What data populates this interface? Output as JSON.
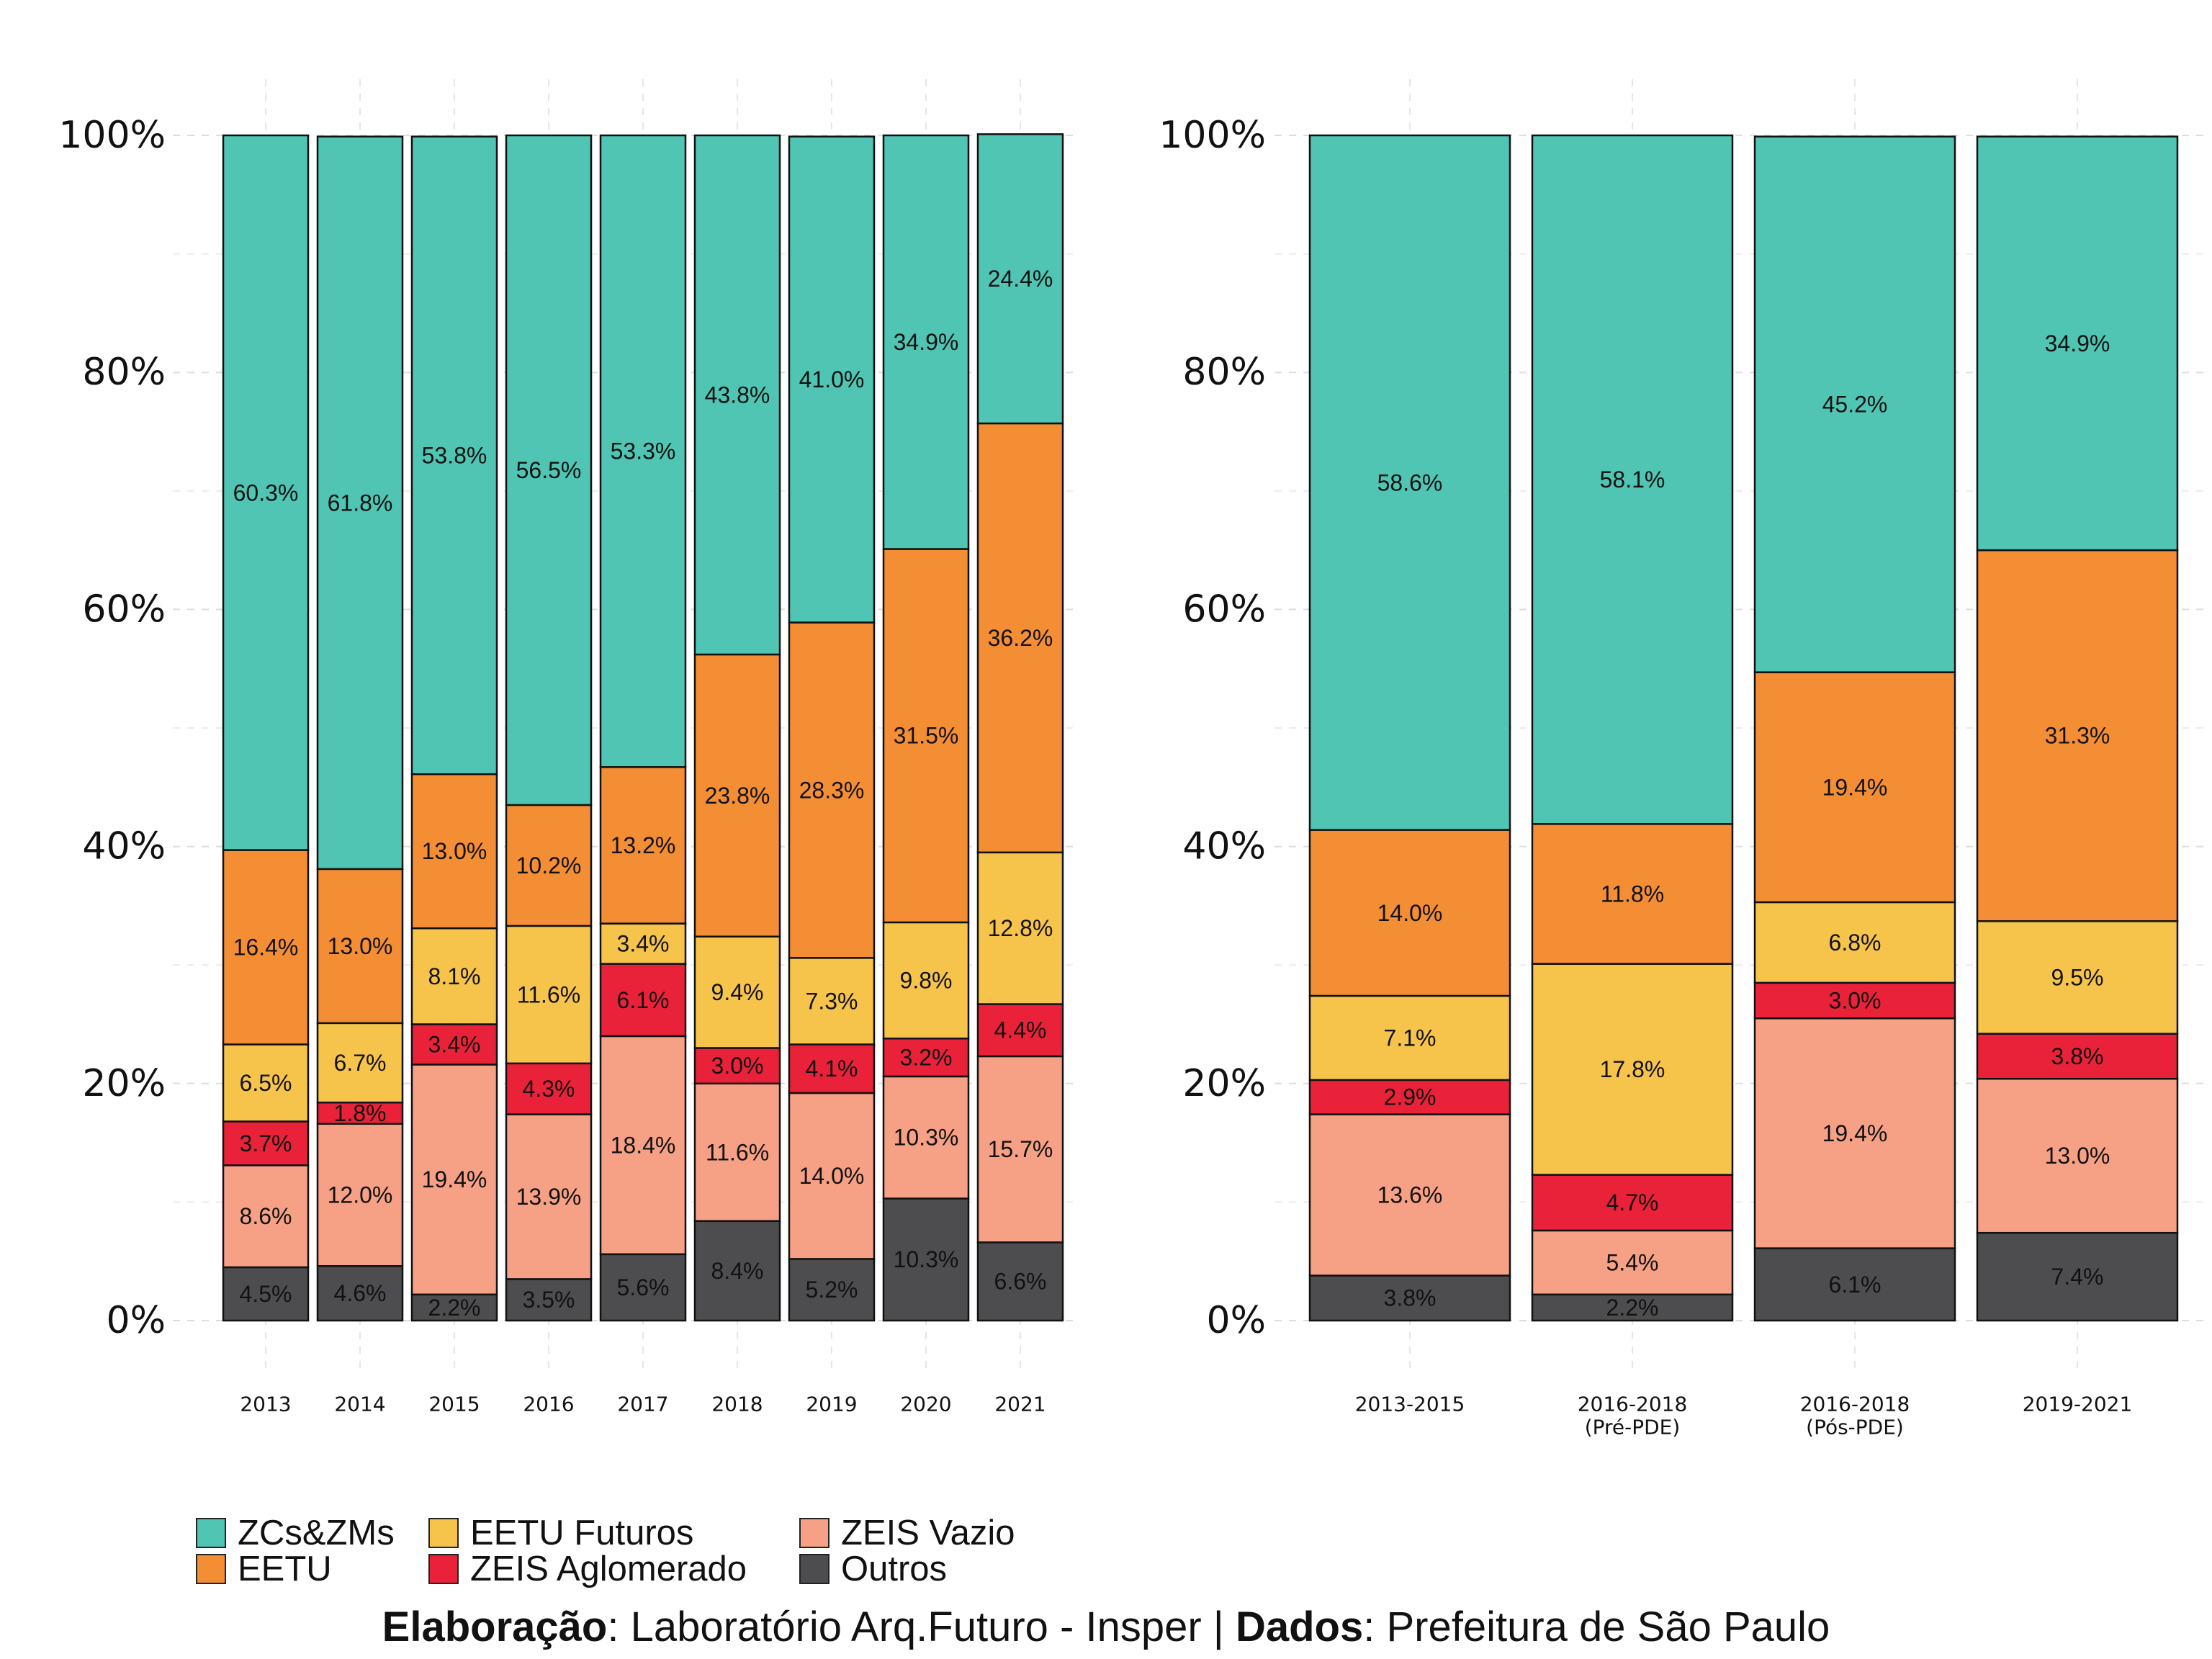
{
  "colors": {
    "ZCs&ZMs": "#50C5B3",
    "EETU": "#F48E35",
    "EETU Futuros": "#F6C44B",
    "ZEIS Aglomerado": "#EA2239",
    "ZEIS Vazio": "#F6A186",
    "Outros": "#4D4D4F"
  },
  "legend": {
    "items": [
      "ZCs&ZMs",
      "EETU",
      "EETU Futuros",
      "ZEIS Aglomerado",
      "ZEIS Vazio",
      "Outros"
    ]
  },
  "caption": {
    "label1": "Elaboração",
    "text1": ": Laboratório Arq.Futuro - Insper | ",
    "label2": "Dados",
    "text2": ": Prefeitura de São Paulo"
  },
  "chart_data": [
    {
      "type": "bar",
      "stacked": true,
      "ylim": [
        0,
        100
      ],
      "yticks": [
        "0%",
        "20%",
        "40%",
        "60%",
        "80%",
        "100%"
      ],
      "grid": true,
      "legend_position": "bottom",
      "categories": [
        "2013",
        "2014",
        "2015",
        "2016",
        "2017",
        "2018",
        "2019",
        "2020",
        "2021"
      ],
      "series": [
        {
          "name": "Outros",
          "values": [
            4.5,
            4.6,
            2.2,
            3.5,
            5.6,
            8.4,
            5.2,
            10.3,
            6.6
          ],
          "labels": [
            "4.5%",
            "4.6%",
            "2.2%",
            "3.5%",
            "5.6%",
            "8.4%",
            "5.2%",
            "10.3%",
            "6.6%"
          ]
        },
        {
          "name": "ZEIS Vazio",
          "values": [
            8.6,
            12.0,
            19.4,
            13.9,
            18.4,
            11.6,
            14.0,
            10.3,
            15.7
          ],
          "labels": [
            "8.6%",
            "12.0%",
            "19.4%",
            "13.9%",
            "18.4%",
            "11.6%",
            "14.0%",
            "10.3%",
            "15.7%"
          ]
        },
        {
          "name": "ZEIS Aglomerado",
          "values": [
            3.7,
            1.8,
            3.4,
            4.3,
            6.1,
            3.0,
            4.1,
            3.2,
            4.4
          ],
          "labels": [
            "3.7%",
            "1.8%",
            "3.4%",
            "4.3%",
            "6.1%",
            "3.0%",
            "4.1%",
            "3.2%",
            "4.4%"
          ]
        },
        {
          "name": "EETU Futuros",
          "values": [
            6.5,
            6.7,
            8.1,
            11.6,
            3.4,
            9.4,
            7.3,
            9.8,
            12.8
          ],
          "labels": [
            "6.5%",
            "6.7%",
            "8.1%",
            "11.6%",
            "3.4%",
            "9.4%",
            "7.3%",
            "9.8%",
            "12.8%"
          ]
        },
        {
          "name": "EETU",
          "values": [
            16.4,
            13.0,
            13.0,
            10.2,
            13.2,
            23.8,
            28.3,
            31.5,
            36.2
          ],
          "labels": [
            "16.4%",
            "13.0%",
            "13.0%",
            "10.2%",
            "13.2%",
            "23.8%",
            "28.3%",
            "31.5%",
            "36.2%"
          ]
        },
        {
          "name": "ZCs&ZMs",
          "values": [
            60.3,
            61.8,
            53.8,
            56.5,
            53.3,
            43.8,
            41.0,
            34.9,
            24.4
          ],
          "labels": [
            "60.3%",
            "61.8%",
            "53.8%",
            "56.5%",
            "53.3%",
            "43.8%",
            "41.0%",
            "34.9%",
            "24.4%"
          ]
        }
      ]
    },
    {
      "type": "bar",
      "stacked": true,
      "ylim": [
        0,
        100
      ],
      "yticks": [
        "0%",
        "20%",
        "40%",
        "60%",
        "80%",
        "100%"
      ],
      "grid": true,
      "categories": [
        [
          "2013-2015"
        ],
        [
          "2016-2018",
          "(Pré-PDE)"
        ],
        [
          "2016-2018",
          "(Pós-PDE)"
        ],
        [
          "2019-2021"
        ]
      ],
      "series": [
        {
          "name": "Outros",
          "values": [
            3.8,
            2.2,
            6.1,
            7.4
          ],
          "labels": [
            "3.8%",
            "2.2%",
            "6.1%",
            "7.4%"
          ]
        },
        {
          "name": "ZEIS Vazio",
          "values": [
            13.6,
            5.4,
            19.4,
            13.0
          ],
          "labels": [
            "13.6%",
            "5.4%",
            "19.4%",
            "13.0%"
          ]
        },
        {
          "name": "ZEIS Aglomerado",
          "values": [
            2.9,
            4.7,
            3.0,
            3.8
          ],
          "labels": [
            "2.9%",
            "4.7%",
            "3.0%",
            "3.8%"
          ]
        },
        {
          "name": "EETU Futuros",
          "values": [
            7.1,
            17.8,
            6.8,
            9.5
          ],
          "labels": [
            "7.1%",
            "17.8%",
            "6.8%",
            "9.5%"
          ]
        },
        {
          "name": "EETU",
          "values": [
            14.0,
            11.8,
            19.4,
            31.3
          ],
          "labels": [
            "14.0%",
            "11.8%",
            "19.4%",
            "31.3%"
          ]
        },
        {
          "name": "ZCs&ZMs",
          "values": [
            58.6,
            58.1,
            45.2,
            34.9
          ],
          "labels": [
            "58.6%",
            "58.1%",
            "45.2%",
            "34.9%"
          ]
        }
      ]
    }
  ]
}
